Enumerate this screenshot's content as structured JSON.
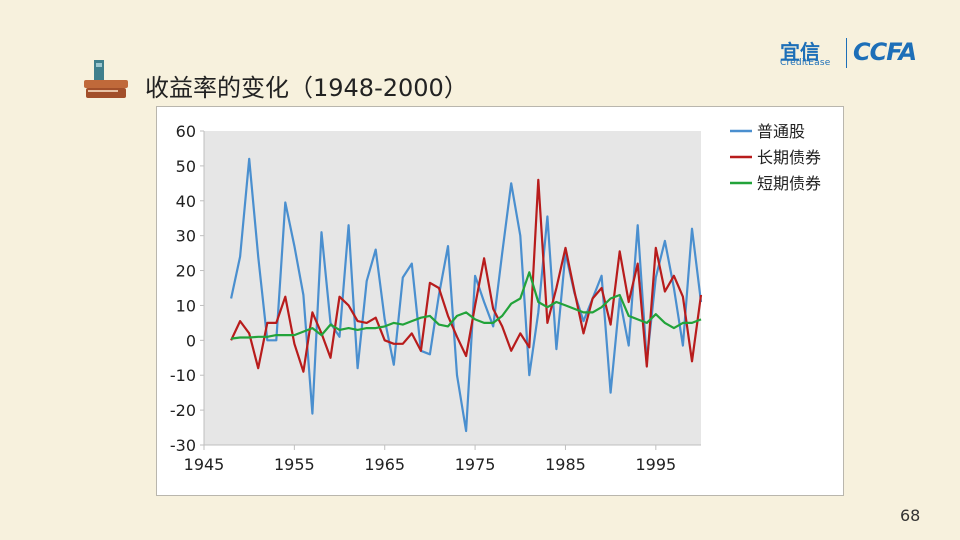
{
  "slide": {
    "title": "收益率的变化（1948-2000）",
    "page_number": "68"
  },
  "logo": {
    "brand_cn": "宜信",
    "brand_en": "CreditEase",
    "brand_abbr": "CCFA"
  },
  "colors": {
    "background": "#f7f1dd",
    "plot_bg": "#e6e6e6",
    "stock": "#4a8fcf",
    "long_bond": "#b81c1c",
    "short_bond": "#22a33a"
  },
  "chart_data": {
    "type": "line",
    "xlim": [
      1945,
      2000
    ],
    "ylim": [
      -30,
      60
    ],
    "xticks": [
      1945,
      1955,
      1965,
      1975,
      1985,
      1995
    ],
    "yticks": [
      -30,
      -20,
      -10,
      0,
      10,
      20,
      30,
      40,
      50,
      60
    ],
    "grid": false,
    "legend_position": "top-right",
    "series": [
      {
        "name": "普通股",
        "color": "#4a8fcf",
        "x": [
          1948,
          1949,
          1950,
          1951,
          1952,
          1953,
          1954,
          1955,
          1956,
          1957,
          1958,
          1959,
          1960,
          1961,
          1962,
          1963,
          1964,
          1965,
          1966,
          1967,
          1968,
          1969,
          1970,
          1971,
          1972,
          1973,
          1974,
          1975,
          1976,
          1977,
          1978,
          1979,
          1980,
          1981,
          1982,
          1983,
          1984,
          1985,
          1986,
          1987,
          1988,
          1989,
          1990,
          1991,
          1992,
          1993,
          1994,
          1995,
          1996,
          1997,
          1998,
          1999,
          2000
        ],
        "y": [
          12,
          24,
          52,
          24,
          0,
          0,
          39.5,
          27,
          13,
          -21,
          31,
          5,
          1,
          33,
          -8,
          17,
          26,
          6,
          -7,
          18,
          22,
          -3,
          -4,
          13,
          27,
          -10,
          -26,
          18.5,
          11,
          4,
          25,
          45,
          30,
          -10,
          8,
          35.5,
          -2.5,
          25,
          13.5,
          5.5,
          12,
          18.5,
          -15,
          12,
          -1.5,
          33,
          -6,
          18,
          28.5,
          15,
          -1.5,
          32,
          11
        ]
      },
      {
        "name": "长期债券",
        "color": "#b81c1c",
        "x": [
          1948,
          1949,
          1950,
          1951,
          1952,
          1953,
          1954,
          1955,
          1956,
          1957,
          1958,
          1959,
          1960,
          1961,
          1962,
          1963,
          1964,
          1965,
          1966,
          1967,
          1968,
          1969,
          1970,
          1971,
          1972,
          1973,
          1974,
          1975,
          1976,
          1977,
          1978,
          1979,
          1980,
          1981,
          1982,
          1983,
          1984,
          1985,
          1986,
          1987,
          1988,
          1989,
          1990,
          1991,
          1992,
          1993,
          1994,
          1995,
          1996,
          1997,
          1998,
          1999,
          2000
        ],
        "y": [
          0,
          5.5,
          2,
          -8,
          5,
          5,
          12.5,
          -1,
          -9,
          8,
          2,
          -5,
          12.5,
          10,
          5.5,
          5,
          6.5,
          0,
          -1,
          -1,
          2,
          -3,
          16.5,
          15,
          7,
          1,
          -4.5,
          10,
          23.5,
          9,
          4,
          -3,
          2,
          -2,
          46,
          5,
          15,
          26.5,
          14,
          2,
          12,
          15,
          4.5,
          25.5,
          11,
          22,
          -7.5,
          26.5,
          14,
          18.5,
          12.5,
          -6,
          13
        ]
      },
      {
        "name": "短期债券",
        "color": "#22a33a",
        "x": [
          1948,
          1949,
          1950,
          1951,
          1952,
          1953,
          1954,
          1955,
          1956,
          1957,
          1958,
          1959,
          1960,
          1961,
          1962,
          1963,
          1964,
          1965,
          1966,
          1967,
          1968,
          1969,
          1970,
          1971,
          1972,
          1973,
          1974,
          1975,
          1976,
          1977,
          1978,
          1979,
          1980,
          1981,
          1982,
          1983,
          1984,
          1985,
          1986,
          1987,
          1988,
          1989,
          1990,
          1991,
          1992,
          1993,
          1994,
          1995,
          1996,
          1997,
          1998,
          1999,
          2000
        ],
        "y": [
          0.5,
          0.8,
          0.8,
          1,
          1,
          1.5,
          1.5,
          1.5,
          2.5,
          3.5,
          1.5,
          4.5,
          3,
          3.5,
          3,
          3.5,
          3.5,
          4,
          5,
          4.5,
          5.5,
          6.5,
          7,
          4.5,
          4,
          7,
          8,
          6,
          5,
          5,
          7,
          10.5,
          12,
          19.5,
          11,
          9.5,
          11,
          10,
          9,
          8,
          8,
          9.5,
          12,
          13,
          7,
          6,
          5,
          7.5,
          5,
          3.5,
          5,
          5,
          6
        ]
      }
    ]
  }
}
